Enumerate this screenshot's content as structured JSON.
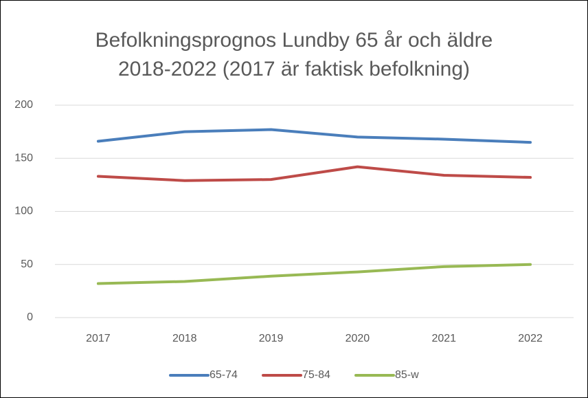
{
  "chart_data": {
    "type": "line",
    "title": "Befolkningsprognos Lundby 65 år och äldre 2018-2022 (2017 är faktisk befolkning)",
    "categories": [
      "2017",
      "2018",
      "2019",
      "2020",
      "2021",
      "2022"
    ],
    "series": [
      {
        "name": "65-74",
        "color": "#4a7ebb",
        "values": [
          166,
          175,
          177,
          170,
          168,
          165
        ]
      },
      {
        "name": "75-84",
        "color": "#be4b48",
        "values": [
          133,
          129,
          130,
          142,
          134,
          132
        ]
      },
      {
        "name": "85-w",
        "color": "#98b954",
        "values": [
          32,
          34,
          39,
          43,
          48,
          50
        ]
      }
    ],
    "ylim": [
      0,
      200
    ],
    "yticks": [
      0,
      50,
      100,
      150,
      200
    ],
    "grid": true,
    "legend": "bottom"
  }
}
